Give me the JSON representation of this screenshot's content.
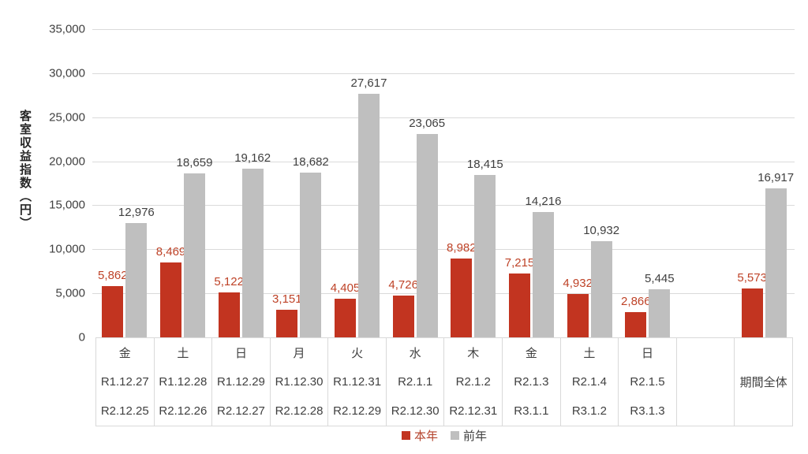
{
  "chart_data": {
    "type": "bar",
    "title": "",
    "ylabel": "客室収益指数（円）",
    "ylim": [
      0,
      35000
    ],
    "ytick_step": 5000,
    "grid": true,
    "legend_position": "bottom",
    "categories": [
      "金",
      "土",
      "日",
      "月",
      "火",
      "水",
      "木",
      "金",
      "土",
      "日"
    ],
    "category_dates_prev_year": [
      "R1.12.27",
      "R1.12.28",
      "R1.12.29",
      "R1.12.30",
      "R1.12.31",
      "R2.1.1",
      "R2.1.2",
      "R2.1.3",
      "R2.1.4",
      "R2.1.5"
    ],
    "category_dates_this_year": [
      "R2.12.25",
      "R2.12.26",
      "R2.12.27",
      "R2.12.28",
      "R2.12.29",
      "R2.12.30",
      "R2.12.31",
      "R3.1.1",
      "R3.1.2",
      "R3.1.3"
    ],
    "period_total_label": "期間全体",
    "series": [
      {
        "name": "本年",
        "color": "#c23420",
        "label_color": "#be4227",
        "values": [
          5862,
          8469,
          5122,
          3151,
          4405,
          4726,
          8982,
          7215,
          4932,
          2866
        ],
        "period_total": 5573
      },
      {
        "name": "前年",
        "color": "#bfbfbf",
        "label_color": "#404040",
        "values": [
          12976,
          18659,
          19162,
          18682,
          27617,
          23065,
          18415,
          14216,
          10932,
          5445
        ],
        "period_total": 16917
      }
    ],
    "colors": {
      "gridline": "#dadada",
      "axis_text": "#404040",
      "table_border": "#d9d9d9"
    }
  }
}
